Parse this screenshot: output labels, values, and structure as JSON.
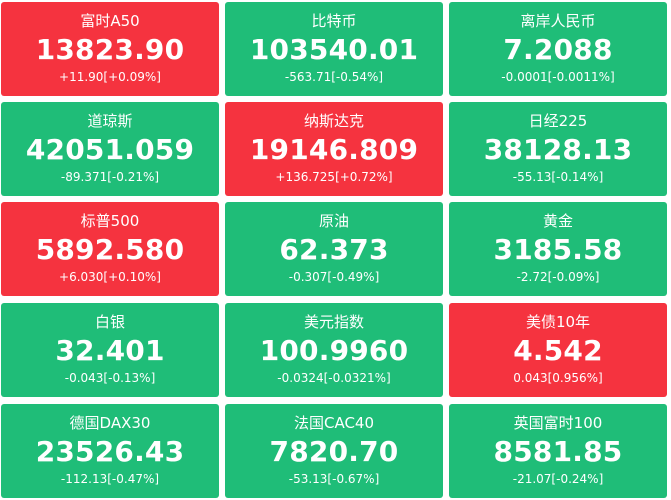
{
  "colors": {
    "up": "#f5333f",
    "down": "#1fbd78"
  },
  "tiles": [
    {
      "name": "富时A50",
      "value": "13823.90",
      "change": "+11.90[+0.09%]",
      "trend": "up"
    },
    {
      "name": "比特币",
      "value": "103540.01",
      "change": "-563.71[-0.54%]",
      "trend": "down"
    },
    {
      "name": "离岸人民币",
      "value": "7.2088",
      "change": "-0.0001[-0.0011%]",
      "trend": "down"
    },
    {
      "name": "道琼斯",
      "value": "42051.059",
      "change": "-89.371[-0.21%]",
      "trend": "down"
    },
    {
      "name": "纳斯达克",
      "value": "19146.809",
      "change": "+136.725[+0.72%]",
      "trend": "up"
    },
    {
      "name": "日经225",
      "value": "38128.13",
      "change": "-55.13[-0.14%]",
      "trend": "down"
    },
    {
      "name": "标普500",
      "value": "5892.580",
      "change": "+6.030[+0.10%]",
      "trend": "up"
    },
    {
      "name": "原油",
      "value": "62.373",
      "change": "-0.307[-0.49%]",
      "trend": "down"
    },
    {
      "name": "黄金",
      "value": "3185.58",
      "change": "-2.72[-0.09%]",
      "trend": "down"
    },
    {
      "name": "白银",
      "value": "32.401",
      "change": "-0.043[-0.13%]",
      "trend": "down"
    },
    {
      "name": "美元指数",
      "value": "100.9960",
      "change": "-0.0324[-0.0321%]",
      "trend": "down"
    },
    {
      "name": "美债10年",
      "value": "4.542",
      "change": "0.043[0.956%]",
      "trend": "up"
    },
    {
      "name": "德国DAX30",
      "value": "23526.43",
      "change": "-112.13[-0.47%]",
      "trend": "down"
    },
    {
      "name": "法国CAC40",
      "value": "7820.70",
      "change": "-53.13[-0.67%]",
      "trend": "down"
    },
    {
      "name": "英国富时100",
      "value": "8581.85",
      "change": "-21.07[-0.24%]",
      "trend": "down"
    }
  ]
}
